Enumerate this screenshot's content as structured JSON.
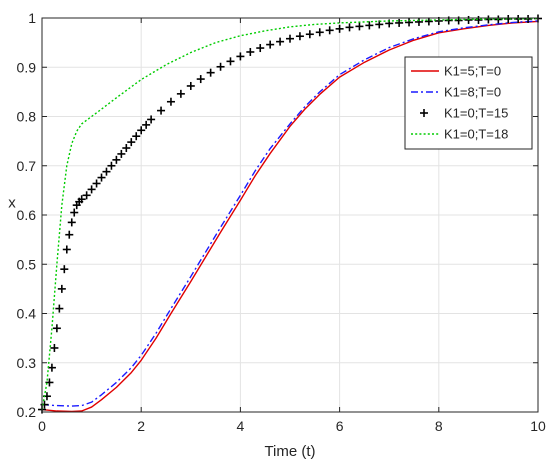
{
  "chart_data": {
    "type": "line",
    "xlabel": "Time (t)",
    "ylabel": "x",
    "xlim": [
      0,
      10
    ],
    "ylim": [
      0.2,
      1.0
    ],
    "x_ticks": [
      "0",
      "2",
      "4",
      "6",
      "8",
      "10"
    ],
    "y_ticks": [
      "0.2",
      "0.3",
      "0.4",
      "0.5",
      "0.6",
      "0.7",
      "0.8",
      "0.9",
      "1"
    ],
    "grid": true,
    "legend_position": "top-right",
    "series": [
      {
        "name": "K1=5;T=0",
        "color": "#e00000",
        "style": "solid",
        "marker": "none",
        "points": [
          [
            0,
            0.205
          ],
          [
            0.3,
            0.202
          ],
          [
            0.6,
            0.201
          ],
          [
            0.8,
            0.202
          ],
          [
            1.0,
            0.21
          ],
          [
            1.2,
            0.225
          ],
          [
            1.5,
            0.25
          ],
          [
            1.8,
            0.28
          ],
          [
            2.0,
            0.305
          ],
          [
            2.3,
            0.35
          ],
          [
            2.6,
            0.4
          ],
          [
            3.0,
            0.465
          ],
          [
            3.3,
            0.515
          ],
          [
            3.6,
            0.565
          ],
          [
            4.0,
            0.63
          ],
          [
            4.3,
            0.68
          ],
          [
            4.6,
            0.725
          ],
          [
            5.0,
            0.78
          ],
          [
            5.3,
            0.815
          ],
          [
            5.6,
            0.845
          ],
          [
            6.0,
            0.88
          ],
          [
            6.5,
            0.91
          ],
          [
            7.0,
            0.935
          ],
          [
            7.5,
            0.955
          ],
          [
            8.0,
            0.97
          ],
          [
            8.5,
            0.978
          ],
          [
            9.0,
            0.985
          ],
          [
            9.5,
            0.99
          ],
          [
            10,
            0.993
          ]
        ]
      },
      {
        "name": "K1=8;T=0",
        "color": "#1a1aff",
        "style": "dashdot",
        "marker": "none",
        "points": [
          [
            0,
            0.215
          ],
          [
            0.3,
            0.213
          ],
          [
            0.6,
            0.212
          ],
          [
            0.8,
            0.213
          ],
          [
            1.0,
            0.22
          ],
          [
            1.2,
            0.235
          ],
          [
            1.5,
            0.26
          ],
          [
            1.8,
            0.29
          ],
          [
            2.0,
            0.315
          ],
          [
            2.3,
            0.36
          ],
          [
            2.6,
            0.41
          ],
          [
            3.0,
            0.475
          ],
          [
            3.3,
            0.525
          ],
          [
            3.6,
            0.575
          ],
          [
            4.0,
            0.64
          ],
          [
            4.3,
            0.69
          ],
          [
            4.6,
            0.735
          ],
          [
            5.0,
            0.785
          ],
          [
            5.3,
            0.82
          ],
          [
            5.6,
            0.85
          ],
          [
            6.0,
            0.885
          ],
          [
            6.5,
            0.915
          ],
          [
            7.0,
            0.94
          ],
          [
            7.5,
            0.958
          ],
          [
            8.0,
            0.972
          ],
          [
            8.5,
            0.98
          ],
          [
            9.0,
            0.986
          ],
          [
            9.5,
            0.991
          ],
          [
            10,
            0.994
          ]
        ]
      },
      {
        "name": "K1=0;T=15",
        "color": "#000000",
        "style": "none",
        "marker": "plus",
        "points": [
          [
            0,
            0.205
          ],
          [
            0.05,
            0.215
          ],
          [
            0.1,
            0.232
          ],
          [
            0.15,
            0.26
          ],
          [
            0.2,
            0.29
          ],
          [
            0.25,
            0.33
          ],
          [
            0.3,
            0.37
          ],
          [
            0.35,
            0.41
          ],
          [
            0.4,
            0.45
          ],
          [
            0.45,
            0.49
          ],
          [
            0.5,
            0.53
          ],
          [
            0.55,
            0.56
          ],
          [
            0.6,
            0.585
          ],
          [
            0.65,
            0.605
          ],
          [
            0.7,
            0.62
          ],
          [
            0.75,
            0.627
          ],
          [
            0.8,
            0.632
          ],
          [
            0.9,
            0.64
          ],
          [
            1.0,
            0.652
          ],
          [
            1.1,
            0.664
          ],
          [
            1.2,
            0.676
          ],
          [
            1.3,
            0.688
          ],
          [
            1.4,
            0.7
          ],
          [
            1.5,
            0.712
          ],
          [
            1.6,
            0.724
          ],
          [
            1.7,
            0.736
          ],
          [
            1.8,
            0.748
          ],
          [
            1.9,
            0.76
          ],
          [
            2.0,
            0.772
          ],
          [
            2.1,
            0.783
          ],
          [
            2.2,
            0.794
          ],
          [
            2.4,
            0.812
          ],
          [
            2.6,
            0.83
          ],
          [
            2.8,
            0.846
          ],
          [
            3.0,
            0.862
          ],
          [
            3.2,
            0.876
          ],
          [
            3.4,
            0.889
          ],
          [
            3.6,
            0.901
          ],
          [
            3.8,
            0.912
          ],
          [
            4.0,
            0.922
          ],
          [
            4.2,
            0.931
          ],
          [
            4.4,
            0.939
          ],
          [
            4.6,
            0.946
          ],
          [
            4.8,
            0.952
          ],
          [
            5.0,
            0.958
          ],
          [
            5.2,
            0.963
          ],
          [
            5.4,
            0.967
          ],
          [
            5.6,
            0.971
          ],
          [
            5.8,
            0.975
          ],
          [
            6.0,
            0.978
          ],
          [
            6.2,
            0.981
          ],
          [
            6.4,
            0.983
          ],
          [
            6.6,
            0.985
          ],
          [
            6.8,
            0.987
          ],
          [
            7.0,
            0.989
          ],
          [
            7.2,
            0.99
          ],
          [
            7.4,
            0.991
          ],
          [
            7.6,
            0.992
          ],
          [
            7.8,
            0.993
          ],
          [
            8.0,
            0.994
          ],
          [
            8.2,
            0.995
          ],
          [
            8.4,
            0.995
          ],
          [
            8.6,
            0.996
          ],
          [
            8.8,
            0.996
          ],
          [
            9.0,
            0.997
          ],
          [
            9.2,
            0.997
          ],
          [
            9.4,
            0.998
          ],
          [
            9.6,
            0.998
          ],
          [
            9.8,
            0.998
          ],
          [
            10,
            0.999
          ]
        ]
      },
      {
        "name": "K1=0;T=18",
        "color": "#00cc00",
        "style": "dotted",
        "marker": "none",
        "points": [
          [
            0,
            0.205
          ],
          [
            0.1,
            0.26
          ],
          [
            0.2,
            0.37
          ],
          [
            0.3,
            0.5
          ],
          [
            0.4,
            0.62
          ],
          [
            0.5,
            0.7
          ],
          [
            0.6,
            0.745
          ],
          [
            0.7,
            0.77
          ],
          [
            0.8,
            0.785
          ],
          [
            1.0,
            0.8
          ],
          [
            1.2,
            0.815
          ],
          [
            1.5,
            0.838
          ],
          [
            2.0,
            0.875
          ],
          [
            2.5,
            0.905
          ],
          [
            3.0,
            0.93
          ],
          [
            3.5,
            0.95
          ],
          [
            4.0,
            0.964
          ],
          [
            4.5,
            0.974
          ],
          [
            5.0,
            0.982
          ],
          [
            5.5,
            0.987
          ],
          [
            6.0,
            0.99
          ],
          [
            7.0,
            0.994
          ],
          [
            8.0,
            0.996
          ],
          [
            9.0,
            0.998
          ],
          [
            10,
            0.999
          ]
        ]
      }
    ]
  }
}
